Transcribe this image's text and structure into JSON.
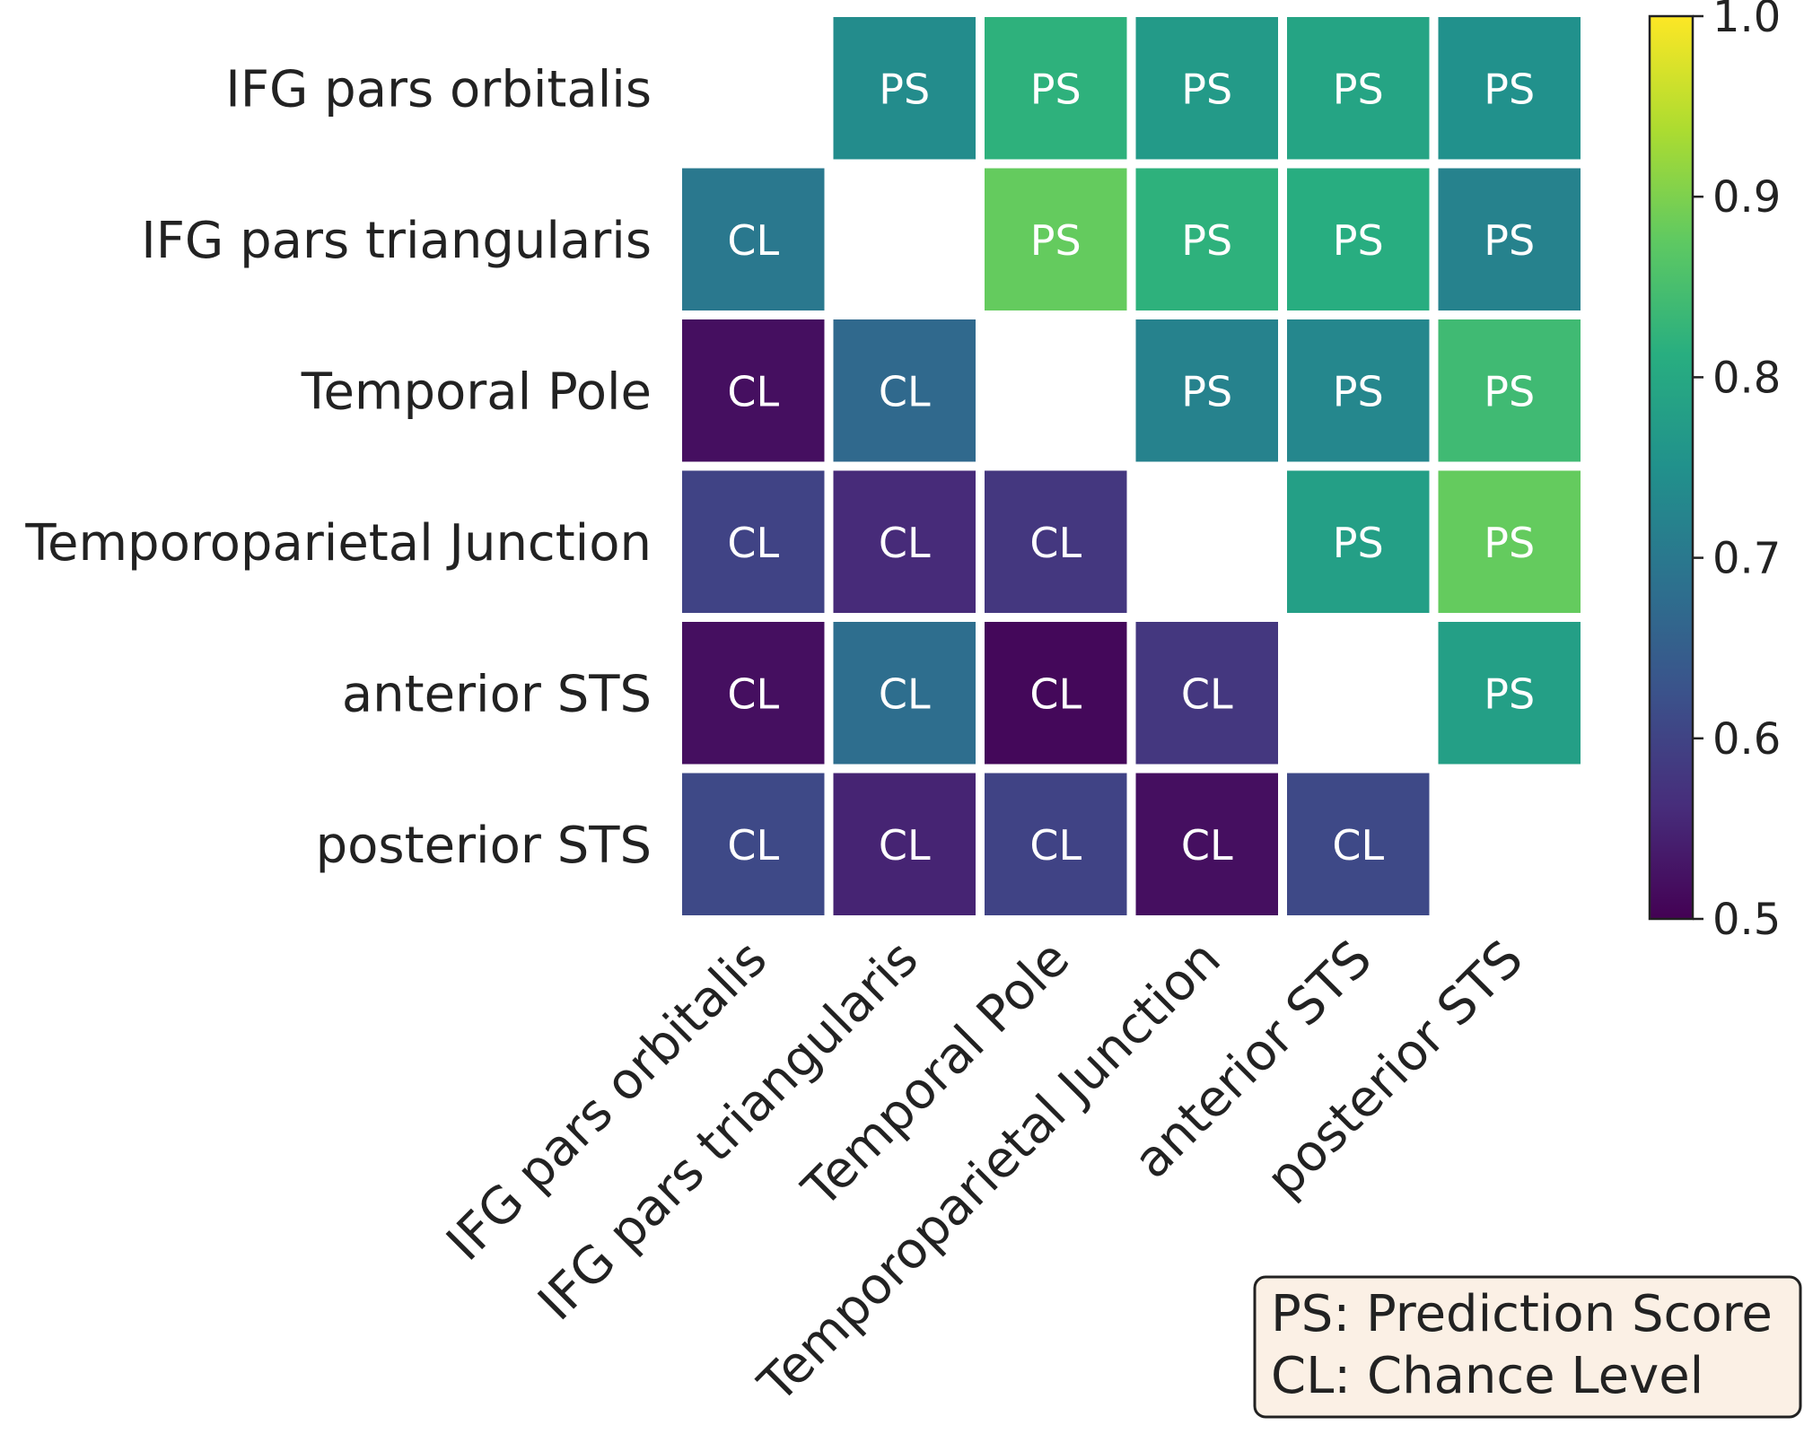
{
  "chart_data": {
    "type": "heatmap",
    "rows": [
      "IFG pars orbitalis",
      "IFG pars triangularis",
      "Temporal Pole",
      "Temporoparietal Junction",
      "anterior STS",
      "posterior STS"
    ],
    "columns": [
      "IFG pars orbitalis",
      "IFG pars triangularis",
      "Temporal Pole",
      "Temporoparietal Junction",
      "anterior STS",
      "posterior STS"
    ],
    "values": [
      [
        null,
        0.74,
        0.82,
        0.77,
        0.79,
        0.75
      ],
      [
        0.7,
        null,
        0.88,
        0.82,
        0.81,
        0.72
      ],
      [
        0.52,
        0.67,
        null,
        0.72,
        0.73,
        0.84
      ],
      [
        0.6,
        0.56,
        0.58,
        null,
        0.78,
        0.88
      ],
      [
        0.52,
        0.68,
        0.51,
        0.58,
        null,
        0.78
      ],
      [
        0.61,
        0.55,
        0.6,
        0.52,
        0.61,
        null
      ]
    ],
    "cell_labels": [
      [
        "",
        "PS",
        "PS",
        "PS",
        "PS",
        "PS"
      ],
      [
        "CL",
        "",
        "PS",
        "PS",
        "PS",
        "PS"
      ],
      [
        "CL",
        "CL",
        "",
        "PS",
        "PS",
        "PS"
      ],
      [
        "CL",
        "CL",
        "CL",
        "",
        "PS",
        "PS"
      ],
      [
        "CL",
        "CL",
        "CL",
        "CL",
        "",
        "PS"
      ],
      [
        "CL",
        "CL",
        "CL",
        "CL",
        "CL",
        ""
      ]
    ],
    "colormap": "viridis",
    "vmin": 0.5,
    "vmax": 1.0,
    "colorbar_ticks": [
      "0.5",
      "0.6",
      "0.7",
      "0.8",
      "0.9",
      "1.0"
    ],
    "legend": [
      "PS: Prediction Score",
      "CL: Chance Level"
    ],
    "legend_placement": "bottom-right",
    "title": "",
    "xlabel": "",
    "ylabel": ""
  }
}
